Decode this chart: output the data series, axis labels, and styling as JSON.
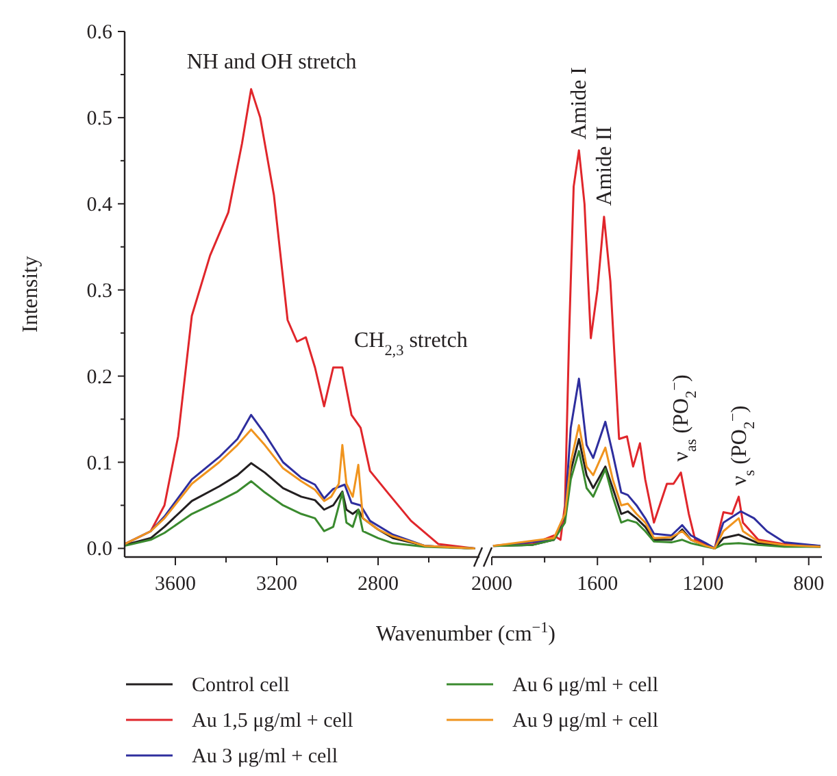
{
  "chart_data": [
    {
      "type": "line",
      "xlabel": "Wavenumber (cm$^{−1}$)",
      "ylabel": "Intensity",
      "xlim": [
        3800,
        2400
      ],
      "ylim": [
        -0.01,
        0.6
      ],
      "xticks": [
        3600,
        {
          "value": 3400,
          "label": null
        },
        3200,
        {
          "value": 3000,
          "label": null
        },
        2800,
        {
          "value": 2600,
          "label": null
        }
      ],
      "yticks": [
        {
          "value": 0,
          "label": "0.0"
        },
        {
          "value": 0.05,
          "label": null
        },
        0.1,
        {
          "value": 0.15,
          "label": null
        },
        0.2,
        {
          "value": 0.25,
          "label": null
        },
        0.3,
        {
          "value": 0.35,
          "label": null
        },
        0.4,
        {
          "value": 0.45,
          "label": null
        },
        0.5,
        {
          "value": 0.55,
          "label": null
        },
        0.6
      ],
      "grid": false,
      "legend": "bottom",
      "line_style": "solid",
      "marker": "none",
      "annotations": [
        {
          "text": "NH and OH stretch",
          "x": 3301,
          "y": 0.533
        },
        {
          "text": "CH$_{2,3}$ stretch",
          "x": 2941,
          "y": 0.21
        }
      ],
      "series": [
        {
          "name": "Control cell",
          "color": "#231f20",
          "x": [
            3800,
            3697,
            3643,
            3535,
            3427,
            3355,
            3301,
            3247,
            3175,
            3103,
            3049,
            3013,
            2977,
            2941,
            2925,
            2900,
            2878,
            2860,
            2800,
            2742,
            2616,
            2418
          ],
          "values": [
            0.004,
            0.012,
            0.025,
            0.055,
            0.072,
            0.085,
            0.099,
            0.088,
            0.07,
            0.06,
            0.056,
            0.045,
            0.05,
            0.066,
            0.045,
            0.04,
            0.045,
            0.035,
            0.022,
            0.012,
            0.003,
            0
          ]
        },
        {
          "name": "Au 1,5 μg/ml + cell",
          "color": "#e0262b",
          "x": [
            3800,
            3697,
            3643,
            3589,
            3535,
            3463,
            3391,
            3337,
            3301,
            3265,
            3211,
            3157,
            3120,
            3085,
            3049,
            3013,
            2977,
            2941,
            2905,
            2869,
            2832,
            2760,
            2670,
            2562,
            2418
          ],
          "values": [
            0.005,
            0.02,
            0.05,
            0.13,
            0.27,
            0.34,
            0.39,
            0.47,
            0.533,
            0.5,
            0.41,
            0.265,
            0.24,
            0.245,
            0.21,
            0.165,
            0.21,
            0.21,
            0.155,
            0.14,
            0.09,
            0.064,
            0.032,
            0.005,
            0
          ]
        },
        {
          "name": "Au 3 μg/ml + cell",
          "color": "#2e2e9e",
          "x": [
            3800,
            3697,
            3643,
            3535,
            3427,
            3355,
            3301,
            3247,
            3175,
            3103,
            3049,
            3013,
            2977,
            2932,
            2905,
            2869,
            2832,
            2742,
            2616,
            2418
          ],
          "values": [
            0.005,
            0.02,
            0.037,
            0.08,
            0.106,
            0.127,
            0.155,
            0.133,
            0.1,
            0.082,
            0.074,
            0.058,
            0.069,
            0.074,
            0.053,
            0.05,
            0.032,
            0.016,
            0.003,
            0
          ]
        },
        {
          "name": "Au 6 μg/ml + cell",
          "color": "#3a8a2e",
          "x": [
            3800,
            3697,
            3643,
            3535,
            3427,
            3355,
            3301,
            3247,
            3175,
            3103,
            3049,
            3013,
            2977,
            2941,
            2925,
            2900,
            2878,
            2860,
            2800,
            2742,
            2616,
            2418
          ],
          "values": [
            0.003,
            0.01,
            0.018,
            0.04,
            0.055,
            0.066,
            0.078,
            0.065,
            0.05,
            0.04,
            0.035,
            0.02,
            0.025,
            0.065,
            0.03,
            0.025,
            0.045,
            0.02,
            0.012,
            0.006,
            0.002,
            0
          ]
        },
        {
          "name": "Au 9 μg/ml + cell",
          "color": "#f0941e",
          "x": [
            3800,
            3697,
            3643,
            3535,
            3427,
            3355,
            3301,
            3247,
            3175,
            3103,
            3049,
            3013,
            2985,
            2955,
            2941,
            2925,
            2900,
            2878,
            2860,
            2800,
            2742,
            2616,
            2418
          ],
          "values": [
            0.005,
            0.02,
            0.035,
            0.075,
            0.1,
            0.12,
            0.138,
            0.12,
            0.093,
            0.078,
            0.068,
            0.055,
            0.06,
            0.075,
            0.12,
            0.075,
            0.06,
            0.097,
            0.035,
            0.022,
            0.014,
            0.003,
            0
          ]
        }
      ]
    },
    {
      "type": "line",
      "xlim": [
        2000,
        750
      ],
      "ylim": [
        -0.01,
        0.6
      ],
      "tick_labels": "x",
      "grid": false,
      "line_style": "solid",
      "marker": "none",
      "xticks": [
        2000,
        {
          "value": 1800,
          "label": null
        },
        1600,
        {
          "value": 1400,
          "label": null
        },
        1200,
        {
          "value": 1000,
          "label": null
        },
        800
      ],
      "annotations": [
        {
          "text": "Amide I",
          "x": 1670,
          "y": 0.462
        },
        {
          "text": "Amide II",
          "x": 1575,
          "y": 0.385
        },
        {
          "text": "ν$_{as}$ (PO$_{2}$$^{−}$)",
          "x": 1284,
          "y": 0.088
        },
        {
          "text": "ν$_{s}$ (PO$_{2}$$^{−}$)",
          "x": 1065,
          "y": 0.06
        }
      ],
      "series": [
        {
          "color": "#231f20",
          "x": [
            1995,
            1847,
            1765,
            1723,
            1701,
            1670,
            1641,
            1616,
            1570,
            1542,
            1510,
            1485,
            1452,
            1419,
            1386,
            1320,
            1279,
            1246,
            1189,
            1156,
            1123,
            1065,
            991,
            892,
            756
          ],
          "values": [
            0.003,
            0.004,
            0.01,
            0.035,
            0.09,
            0.127,
            0.085,
            0.07,
            0.095,
            0.07,
            0.04,
            0.043,
            0.035,
            0.025,
            0.01,
            0.01,
            0.022,
            0.01,
            0.003,
            0,
            0.012,
            0.016,
            0.006,
            0.003,
            0.002
          ]
        },
        {
          "color": "#e0262b",
          "x": [
            1995,
            1847,
            1765,
            1740,
            1723,
            1707,
            1690,
            1670,
            1649,
            1625,
            1600,
            1575,
            1551,
            1518,
            1488,
            1465,
            1439,
            1419,
            1386,
            1337,
            1312,
            1284,
            1254,
            1230,
            1189,
            1156,
            1123,
            1090,
            1065,
            1049,
            991,
            892,
            756
          ],
          "values": [
            0.003,
            0.005,
            0.015,
            0.01,
            0.05,
            0.25,
            0.42,
            0.462,
            0.4,
            0.244,
            0.3,
            0.385,
            0.31,
            0.127,
            0.13,
            0.095,
            0.122,
            0.08,
            0.03,
            0.075,
            0.075,
            0.088,
            0.04,
            0.01,
            0.005,
            0,
            0.042,
            0.04,
            0.06,
            0.03,
            0.01,
            0.005,
            0.003
          ]
        },
        {
          "color": "#2e2e9e",
          "x": [
            1995,
            1765,
            1723,
            1701,
            1670,
            1641,
            1616,
            1570,
            1542,
            1510,
            1485,
            1452,
            1419,
            1386,
            1320,
            1279,
            1246,
            1189,
            1156,
            1123,
            1057,
            1007,
            958,
            892,
            756
          ],
          "values": [
            0.003,
            0.01,
            0.04,
            0.14,
            0.197,
            0.12,
            0.105,
            0.147,
            0.11,
            0.065,
            0.062,
            0.05,
            0.035,
            0.017,
            0.015,
            0.027,
            0.015,
            0.006,
            0,
            0.03,
            0.043,
            0.035,
            0.02,
            0.007,
            0.003
          ]
        },
        {
          "color": "#3a8a2e",
          "x": [
            1995,
            1847,
            1765,
            1723,
            1701,
            1670,
            1641,
            1616,
            1570,
            1542,
            1510,
            1485,
            1452,
            1419,
            1386,
            1320,
            1279,
            1246,
            1189,
            1156,
            1123,
            1065,
            991,
            892,
            756
          ],
          "values": [
            0.003,
            0.004,
            0.01,
            0.03,
            0.08,
            0.113,
            0.07,
            0.06,
            0.092,
            0.06,
            0.03,
            0.033,
            0.03,
            0.02,
            0.008,
            0.007,
            0.01,
            0.006,
            0.002,
            0,
            0.005,
            0.006,
            0.004,
            0.002,
            0.002
          ]
        },
        {
          "color": "#f0941e",
          "x": [
            1995,
            1765,
            1723,
            1701,
            1670,
            1641,
            1616,
            1570,
            1542,
            1510,
            1485,
            1452,
            1419,
            1386,
            1320,
            1279,
            1246,
            1189,
            1156,
            1123,
            1065,
            1049,
            991,
            892,
            756
          ],
          "values": [
            0.003,
            0.012,
            0.04,
            0.1,
            0.143,
            0.095,
            0.085,
            0.117,
            0.08,
            0.05,
            0.052,
            0.04,
            0.03,
            0.012,
            0.013,
            0.02,
            0.01,
            0.003,
            0,
            0.02,
            0.035,
            0.02,
            0.008,
            0.004,
            0.002
          ]
        }
      ]
    }
  ]
}
